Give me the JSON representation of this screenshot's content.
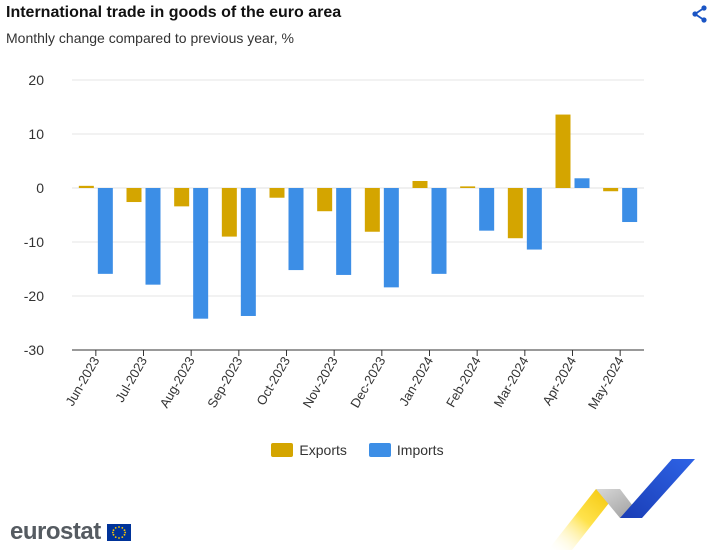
{
  "header": {
    "title": "International trade in goods of the euro area",
    "subtitle": "Monthly change compared to previous year, %",
    "share_icon": "share-icon"
  },
  "chart_data": {
    "type": "bar",
    "categories": [
      "Jun-2023",
      "Jul-2023",
      "Aug-2023",
      "Sep-2023",
      "Oct-2023",
      "Nov-2023",
      "Dec-2023",
      "Jan-2024",
      "Feb-2024",
      "Mar-2024",
      "Apr-2024",
      "May-2024"
    ],
    "series": [
      {
        "name": "Exports",
        "color": "#d4a500",
        "values": [
          0.4,
          -2.6,
          -3.4,
          -9.0,
          -1.8,
          -4.3,
          -8.1,
          1.3,
          0.3,
          -9.3,
          13.6,
          -0.6
        ]
      },
      {
        "name": "Imports",
        "color": "#3c8ee6",
        "values": [
          -15.9,
          -17.9,
          -24.2,
          -23.7,
          -15.2,
          -16.1,
          -18.4,
          -15.9,
          -7.9,
          -11.4,
          1.8,
          -6.3
        ]
      }
    ],
    "title": "International trade in goods of the euro area",
    "xlabel": "",
    "ylabel": "",
    "ylim": [
      -30,
      20
    ],
    "yticks": [
      20,
      10,
      0,
      -10,
      -20,
      -30
    ],
    "grid": true,
    "legend": "bottom-center"
  },
  "legend": {
    "exports_label": "Exports",
    "imports_label": "Imports"
  },
  "branding": {
    "name": "eurostat"
  }
}
